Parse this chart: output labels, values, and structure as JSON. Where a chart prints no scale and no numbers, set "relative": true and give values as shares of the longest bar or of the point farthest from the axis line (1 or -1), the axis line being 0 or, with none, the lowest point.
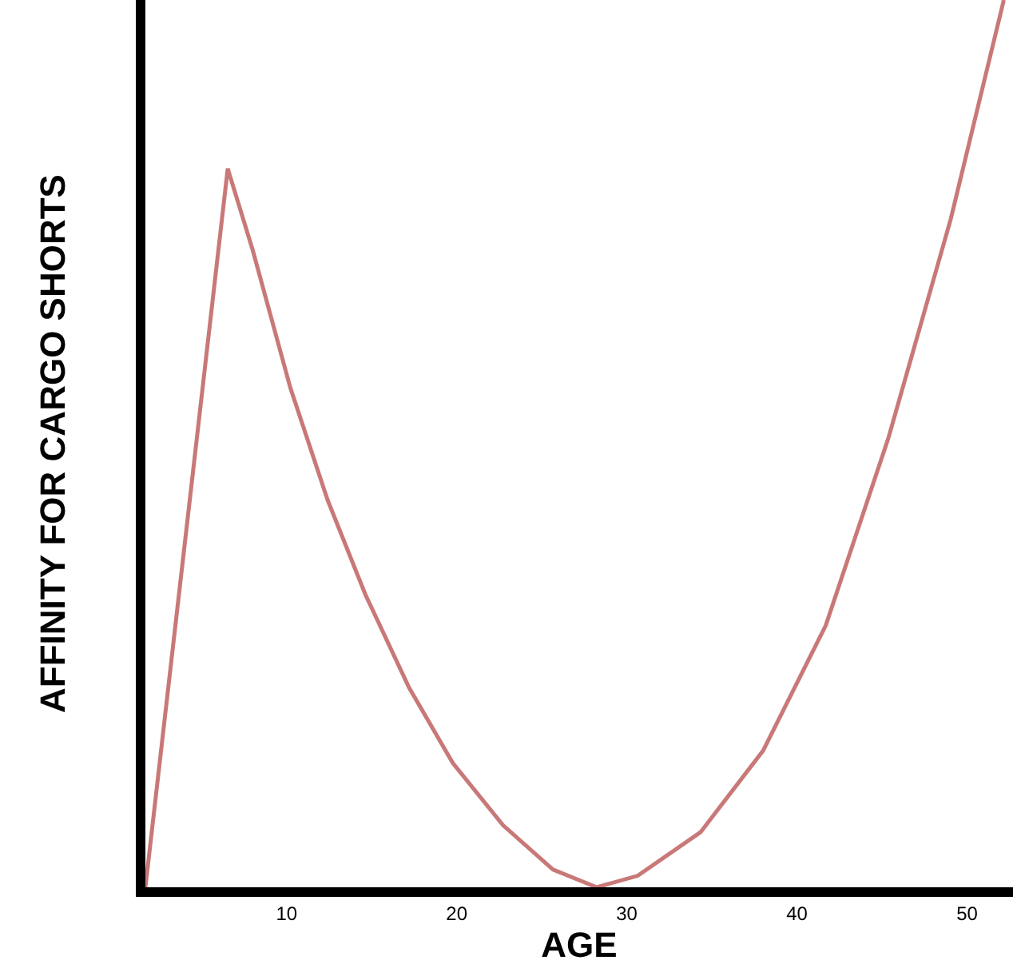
{
  "chart_data": {
    "type": "line",
    "relative": true,
    "xlabel": "AGE",
    "ylabel": "AFFINITY FOR CARGO SHORTS",
    "xlim": [
      1.7,
      52.7
    ],
    "xticks": [
      10,
      20,
      30,
      40,
      50
    ],
    "marker": "none",
    "line_style": "solid",
    "x": [
      1.7,
      6.54,
      8.01,
      10.22,
      12.42,
      14.63,
      17.2,
      19.77,
      22.72,
      25.66,
      28.23,
      30.64,
      34.33,
      38.01,
      41.69,
      45.37,
      49.04,
      52.16
    ],
    "series": [
      {
        "color": "#c97878",
        "values": [
          0,
          0.81,
          0.718,
          0.563,
          0.436,
          0.33,
          0.225,
          0.14,
          0.07,
          0.02,
          0,
          0.013,
          0.062,
          0.154,
          0.295,
          0.506,
          0.753,
          1.0
        ]
      }
    ]
  }
}
